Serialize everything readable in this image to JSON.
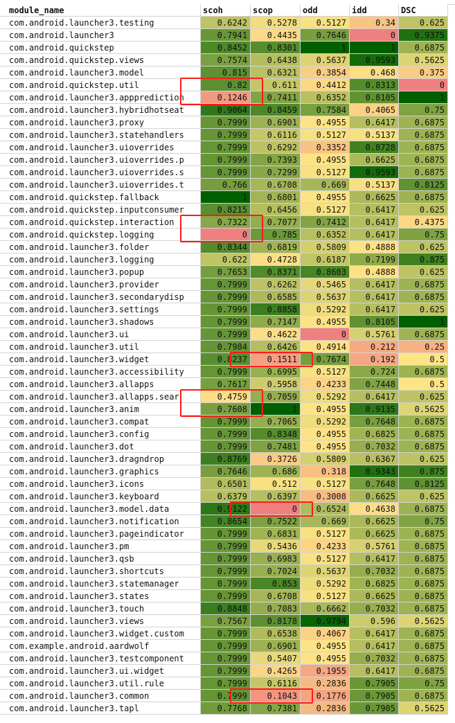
{
  "headers": [
    "module_name",
    "scoh",
    "scop",
    "odd",
    "idd",
    "DSC"
  ],
  "scale_colors": {
    "low": "#f08080",
    "mid": "#fde485",
    "high": "#006000"
  },
  "rows": [
    {
      "name": "com.android.launcher3.testing",
      "v": [
        "0.6242",
        "0.5278",
        "0.5127",
        "0.34",
        "0.625"
      ]
    },
    {
      "name": "com.android.launcher3",
      "v": [
        "0.7941",
        "0.4435",
        "0.7646",
        "0",
        "0.9375"
      ]
    },
    {
      "name": "com.android.quickstep",
      "v": [
        "0.8452",
        "0.8301",
        "1",
        "1",
        "0.6875"
      ]
    },
    {
      "name": "com.android.quickstep.views",
      "v": [
        "0.7574",
        "0.6438",
        "0.5637",
        "0.9593",
        "0.5625"
      ]
    },
    {
      "name": "com.android.launcher3.model",
      "v": [
        "0.815",
        "0.6321",
        "0.3854",
        "0.468",
        "0.375"
      ]
    },
    {
      "name": "com.android.quickstep.util",
      "v": [
        "0.82",
        "0.611",
        "0.4412",
        "0.8313",
        "0"
      ]
    },
    {
      "name": "com.android.launcher3.appprediction",
      "v": [
        "0.1246",
        "0.7411",
        "0.6352",
        "0.8105",
        "1"
      ]
    },
    {
      "name": "com.android.launcher3.hybridhotseat",
      "v": [
        "0.9064",
        "0.8459",
        "0.7584",
        "0.4065",
        "0.75"
      ]
    },
    {
      "name": "com.android.launcher3.proxy",
      "v": [
        "0.7999",
        "0.6901",
        "0.4955",
        "0.6417",
        "0.6875"
      ]
    },
    {
      "name": "com.android.launcher3.statehandlers",
      "v": [
        "0.7999",
        "0.6116",
        "0.5127",
        "0.5137",
        "0.6875"
      ]
    },
    {
      "name": "com.android.launcher3.uioverrides",
      "v": [
        "0.7999",
        "0.6292",
        "0.3352",
        "0.8728",
        "0.6875"
      ]
    },
    {
      "name": "com.android.launcher3.uioverrides.p",
      "v": [
        "0.7999",
        "0.7393",
        "0.4955",
        "0.6625",
        "0.6875"
      ]
    },
    {
      "name": "com.android.launcher3.uioverrides.s",
      "v": [
        "0.7999",
        "0.7299",
        "0.5127",
        "0.9593",
        "0.6875"
      ]
    },
    {
      "name": "com.android.launcher3.uioverrides.t",
      "v": [
        "0.766",
        "0.6708",
        "0.669",
        "0.5137",
        "0.8125"
      ]
    },
    {
      "name": "com.android.quickstep.fallback",
      "v": [
        "1",
        "0.6801",
        "0.4955",
        "0.6625",
        "0.6875"
      ]
    },
    {
      "name": "com.android.quickstep.inputconsumer",
      "v": [
        "0.8215",
        "0.6456",
        "0.5127",
        "0.6417",
        "0.625"
      ]
    },
    {
      "name": "com.android.quickstep.interaction",
      "v": [
        "0.7322",
        "0.7077",
        "0.7412",
        "0.6417",
        "0.4375"
      ]
    },
    {
      "name": "com.android.quickstep.logging",
      "v": [
        "0",
        "0.785",
        "0.6352",
        "0.6417",
        "0.75"
      ]
    },
    {
      "name": "com.android.launcher3.folder",
      "v": [
        "0.8344",
        "0.6819",
        "0.5809",
        "0.4888",
        "0.625"
      ]
    },
    {
      "name": "com.android.launcher3.logging",
      "v": [
        "0.622",
        "0.4728",
        "0.6187",
        "0.7199",
        "0.875"
      ]
    },
    {
      "name": "com.android.launcher3.popup",
      "v": [
        "0.7653",
        "0.8371",
        "0.8603",
        "0.4888",
        "0.625"
      ]
    },
    {
      "name": "com.android.launcher3.provider",
      "v": [
        "0.7999",
        "0.6262",
        "0.5465",
        "0.6417",
        "0.6875"
      ]
    },
    {
      "name": "com.android.launcher3.secondarydisp",
      "v": [
        "0.7999",
        "0.6585",
        "0.5637",
        "0.6417",
        "0.6875"
      ]
    },
    {
      "name": "com.android.launcher3.settings",
      "v": [
        "0.7999",
        "0.8858",
        "0.5292",
        "0.6417",
        "0.625"
      ]
    },
    {
      "name": "com.android.launcher3.shadows",
      "v": [
        "0.7999",
        "0.7147",
        "0.4955",
        "0.8105",
        "1"
      ]
    },
    {
      "name": "com.android.launcher3.ui",
      "v": [
        "0.7999",
        "0.4622",
        "0",
        "0.5761",
        "0.6875"
      ]
    },
    {
      "name": "com.android.launcher3.util",
      "v": [
        "0.7984",
        "0.6426",
        "0.4914",
        "0.212",
        "0.25"
      ]
    },
    {
      "name": "com.android.launcher3.widget",
      "v": [
        "0.8237",
        "0.1511",
        "0.7674",
        "0.192",
        "0.5"
      ]
    },
    {
      "name": "com.android.launcher3.accessibility",
      "v": [
        "0.7999",
        "0.6995",
        "0.5127",
        "0.724",
        "0.6875"
      ]
    },
    {
      "name": "com.android.launcher3.allapps",
      "v": [
        "0.7617",
        "0.5958",
        "0.4233",
        "0.7448",
        "0.5"
      ]
    },
    {
      "name": "com.android.launcher3.allapps.sear",
      "v": [
        "0.4759",
        "0.7059",
        "0.5292",
        "0.6417",
        "0.625"
      ]
    },
    {
      "name": "com.android.launcher3.anim",
      "v": [
        "0.7608",
        "1",
        "0.4955",
        "0.9135",
        "0.5625"
      ]
    },
    {
      "name": "com.android.launcher3.compat",
      "v": [
        "0.7999",
        "0.7065",
        "0.5292",
        "0.7648",
        "0.6875"
      ]
    },
    {
      "name": "com.android.launcher3.config",
      "v": [
        "0.7999",
        "0.8348",
        "0.4955",
        "0.6825",
        "0.6875"
      ]
    },
    {
      "name": "com.android.launcher3.dot",
      "v": [
        "0.7999",
        "0.7481",
        "0.4955",
        "0.7032",
        "0.6875"
      ]
    },
    {
      "name": "com.android.launcher3.dragndrop",
      "v": [
        "0.8769",
        "0.3726",
        "0.5809",
        "0.6367",
        "0.625"
      ]
    },
    {
      "name": "com.android.launcher3.graphics",
      "v": [
        "0.7646",
        "0.686",
        "0.318",
        "0.9343",
        "0.875"
      ]
    },
    {
      "name": "com.android.launcher3.icons",
      "v": [
        "0.6501",
        "0.512",
        "0.5127",
        "0.7648",
        "0.8125"
      ]
    },
    {
      "name": "com.android.launcher3.keyboard",
      "v": [
        "0.6379",
        "0.6397",
        "0.3008",
        "0.6625",
        "0.625"
      ]
    },
    {
      "name": "com.android.launcher3.model.data",
      "v": [
        "0.9122",
        "0",
        "0.6524",
        "0.4638",
        "0.6875"
      ]
    },
    {
      "name": "com.android.launcher3.notification",
      "v": [
        "0.8654",
        "0.7522",
        "0.669",
        "0.6625",
        "0.75"
      ]
    },
    {
      "name": "com.android.launcher3.pageindicator",
      "v": [
        "0.7999",
        "0.6831",
        "0.5127",
        "0.6625",
        "0.6875"
      ]
    },
    {
      "name": "com.android.launcher3.pm",
      "v": [
        "0.7999",
        "0.5436",
        "0.4233",
        "0.5761",
        "0.6875"
      ]
    },
    {
      "name": "com.android.launcher3.qsb",
      "v": [
        "0.7999",
        "0.6983",
        "0.5127",
        "0.6417",
        "0.6875"
      ]
    },
    {
      "name": "com.android.launcher3.shortcuts",
      "v": [
        "0.7999",
        "0.7024",
        "0.5637",
        "0.7032",
        "0.6875"
      ]
    },
    {
      "name": "com.android.launcher3.statemanager",
      "v": [
        "0.7999",
        "0.853",
        "0.5292",
        "0.6825",
        "0.6875"
      ]
    },
    {
      "name": "com.android.launcher3.states",
      "v": [
        "0.7999",
        "0.6708",
        "0.5127",
        "0.6625",
        "0.6875"
      ]
    },
    {
      "name": "com.android.launcher3.touch",
      "v": [
        "0.8848",
        "0.7083",
        "0.6662",
        "0.7032",
        "0.6875"
      ]
    },
    {
      "name": "com.android.launcher3.views",
      "v": [
        "0.7567",
        "0.8178",
        "0.9794",
        "0.596",
        "0.5625"
      ]
    },
    {
      "name": "com.android.launcher3.widget.custom",
      "v": [
        "0.7999",
        "0.6538",
        "0.4067",
        "0.6417",
        "0.6875"
      ]
    },
    {
      "name": "com.example.android.aardwolf",
      "v": [
        "0.7999",
        "0.6901",
        "0.4955",
        "0.6417",
        "0.6875"
      ]
    },
    {
      "name": "com.android.launcher3.testcomponent",
      "v": [
        "0.7999",
        "0.5407",
        "0.4955",
        "0.7032",
        "0.6875"
      ]
    },
    {
      "name": "com.android.launcher3.ui.widget",
      "v": [
        "0.7999",
        "0.4265",
        "0.1955",
        "0.6417",
        "0.6875"
      ]
    },
    {
      "name": "com.android.launcher3.util.rule",
      "v": [
        "0.7999",
        "0.6116",
        "0.2836",
        "0.7905",
        "0.75"
      ]
    },
    {
      "name": "com.android.launcher3.common",
      "v": [
        "0.7999",
        "0.1043",
        "0.1776",
        "0.7905",
        "0.6875"
      ]
    },
    {
      "name": "com.android.launcher3.tapl",
      "v": [
        "0.7768",
        "0.7381",
        "0.2836",
        "0.7905",
        "0.5625"
      ]
    }
  ],
  "highlights": [
    {
      "row": 5,
      "col": 0,
      "rows": 2
    },
    {
      "row": 16,
      "col": 0,
      "rows": 2
    },
    {
      "row": 27,
      "col": 1,
      "rows": 1
    },
    {
      "row": 30,
      "col": 0,
      "rows": 2
    },
    {
      "row": 39,
      "col": 1,
      "rows": 1
    },
    {
      "row": 54,
      "col": 1,
      "rows": 1
    }
  ]
}
